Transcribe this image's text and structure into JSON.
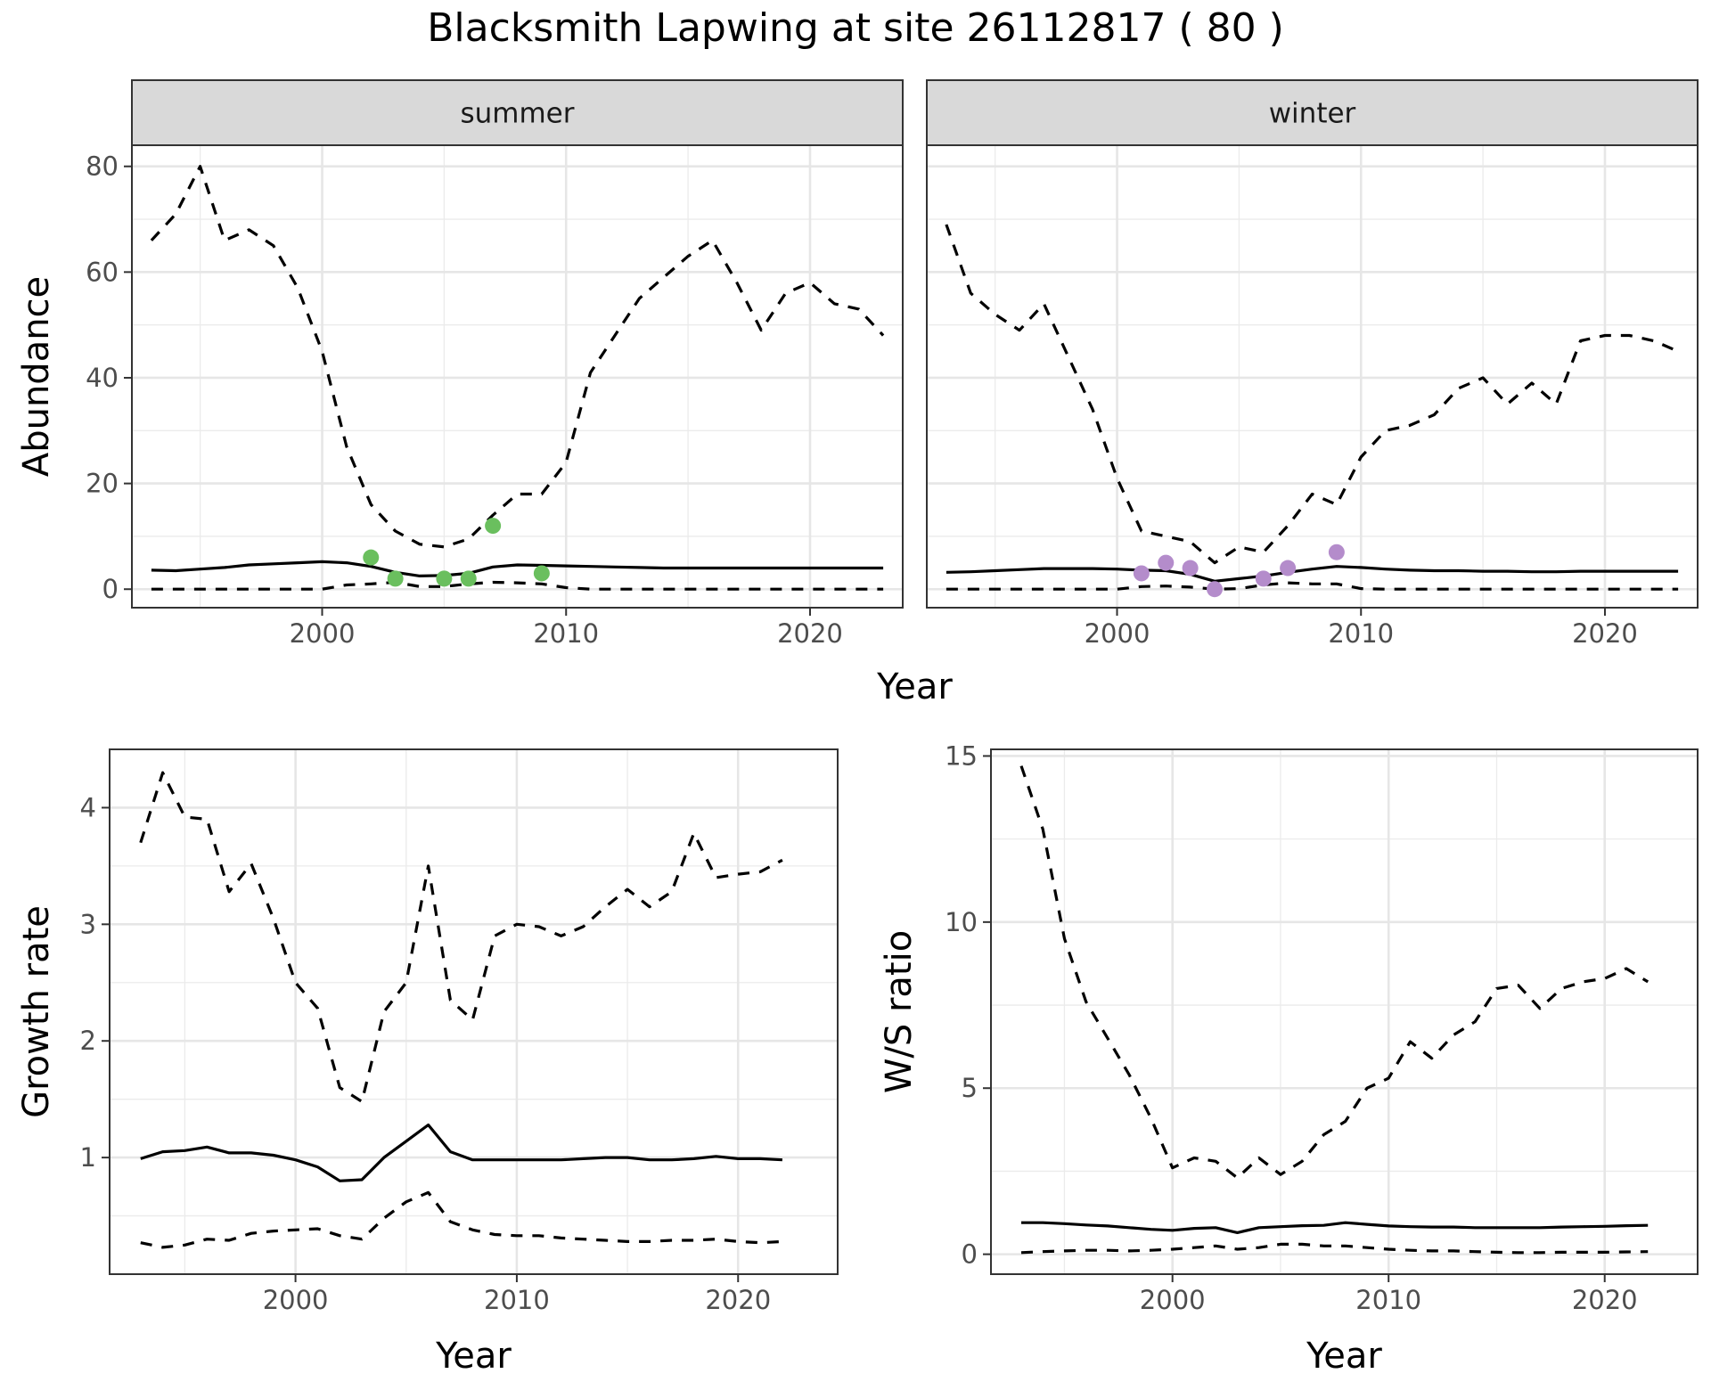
{
  "title": "Blacksmith Lapwing at site 26112817 ( 80 )",
  "colors": {
    "summer_points": "#6abf5e",
    "winter_points": "#b48ccb",
    "lines": "#000000",
    "strip_fill": "#d9d9d9"
  },
  "chart_data": [
    {
      "type": "line",
      "panel": "summer",
      "strip_label": "summer",
      "xlabel": "Year",
      "ylabel": "Abundance",
      "xlim": [
        1992.2,
        2023.8
      ],
      "ylim": [
        -3.5,
        84
      ],
      "xticks": [
        2000,
        2010,
        2020
      ],
      "yticks": [
        0,
        20,
        40,
        60,
        80
      ],
      "x": [
        1993,
        1994,
        1995,
        1996,
        1997,
        1998,
        1999,
        2000,
        2001,
        2002,
        2003,
        2004,
        2005,
        2006,
        2007,
        2008,
        2009,
        2010,
        2011,
        2012,
        2013,
        2014,
        2015,
        2016,
        2017,
        2018,
        2019,
        2020,
        2021,
        2022,
        2023
      ],
      "series": [
        {
          "style": "dashed",
          "values": [
            66,
            71,
            80,
            66,
            68,
            65,
            57,
            45,
            27,
            16,
            11,
            8.5,
            8,
            9.5,
            14,
            18,
            18,
            24,
            41,
            48,
            55,
            59,
            63,
            66,
            58,
            49,
            56,
            58,
            54,
            53,
            48
          ]
        },
        {
          "style": "solid",
          "values": [
            3.6,
            3.5,
            3.8,
            4.1,
            4.6,
            4.8,
            5,
            5.2,
            5,
            4.3,
            3.2,
            2.5,
            2.6,
            3,
            4.2,
            4.6,
            4.5,
            4.4,
            4.3,
            4.2,
            4.1,
            4,
            4,
            4,
            4,
            4,
            4,
            4,
            4,
            4,
            4
          ]
        },
        {
          "style": "dashed",
          "values": [
            0,
            0,
            0,
            0,
            0,
            0,
            0,
            0,
            0.8,
            1,
            1.3,
            0.5,
            0.5,
            1,
            1.3,
            1.2,
            1,
            0.3,
            0,
            0,
            0,
            0,
            0,
            0,
            0,
            0,
            0,
            0,
            0,
            0,
            0
          ]
        }
      ],
      "points": {
        "x": [
          2002,
          2003,
          2005,
          2006,
          2007,
          2009
        ],
        "y": [
          6,
          2,
          2,
          2,
          12,
          3
        ]
      }
    },
    {
      "type": "line",
      "panel": "winter",
      "strip_label": "winter",
      "xlabel": "Year",
      "ylabel": "",
      "xlim": [
        1992.2,
        2023.8
      ],
      "ylim": [
        -3.5,
        84
      ],
      "xticks": [
        2000,
        2010,
        2020
      ],
      "yticks": [],
      "x": [
        1993,
        1994,
        1995,
        1996,
        1997,
        1998,
        1999,
        2000,
        2001,
        2002,
        2003,
        2004,
        2005,
        2006,
        2007,
        2008,
        2009,
        2010,
        2011,
        2012,
        2013,
        2014,
        2015,
        2016,
        2017,
        2018,
        2019,
        2020,
        2021,
        2022,
        2023
      ],
      "series": [
        {
          "style": "dashed",
          "values": [
            69,
            56,
            52,
            49,
            54,
            44,
            34,
            21,
            11,
            10,
            9,
            5,
            8,
            7,
            12,
            18,
            16,
            25,
            30,
            31,
            33,
            38,
            40,
            35,
            39,
            35,
            47,
            48,
            48,
            47,
            45
          ]
        },
        {
          "style": "solid",
          "values": [
            3.2,
            3.3,
            3.5,
            3.7,
            3.9,
            3.9,
            3.9,
            3.8,
            3.6,
            3.5,
            2.8,
            1.5,
            2,
            2.5,
            3.2,
            3.8,
            4.3,
            4.1,
            3.8,
            3.6,
            3.5,
            3.5,
            3.4,
            3.4,
            3.3,
            3.3,
            3.4,
            3.4,
            3.4,
            3.4,
            3.4
          ]
        },
        {
          "style": "dashed",
          "values": [
            0,
            0,
            0,
            0,
            0,
            0,
            0,
            0,
            0.5,
            0.6,
            0.4,
            0,
            0.1,
            0.8,
            1.2,
            1,
            1,
            0.1,
            0,
            0,
            0,
            0,
            0,
            0,
            0,
            0,
            0,
            0,
            0,
            0,
            0
          ]
        }
      ],
      "points": {
        "x": [
          2001,
          2002,
          2003,
          2004,
          2006,
          2007,
          2009
        ],
        "y": [
          3,
          5,
          4,
          0,
          2,
          4,
          7
        ]
      }
    },
    {
      "type": "line",
      "panel": "growth",
      "xlabel": "Year",
      "ylabel": "Growth rate",
      "xlim": [
        1991.6,
        2024.5
      ],
      "ylim": [
        0.0,
        4.5
      ],
      "xticks": [
        2000,
        2010,
        2020
      ],
      "yticks": [
        1,
        2,
        3,
        4
      ],
      "x": [
        1993,
        1994,
        1995,
        1996,
        1997,
        1998,
        1999,
        2000,
        2001,
        2002,
        2003,
        2004,
        2005,
        2006,
        2007,
        2008,
        2009,
        2010,
        2011,
        2012,
        2013,
        2014,
        2015,
        2016,
        2017,
        2018,
        2019,
        2020,
        2021,
        2022
      ],
      "series": [
        {
          "style": "dashed",
          "values": [
            3.7,
            4.3,
            3.92,
            3.9,
            3.28,
            3.52,
            3.05,
            2.5,
            2.28,
            1.6,
            1.48,
            2.25,
            2.5,
            3.5,
            2.35,
            2.18,
            2.9,
            3.0,
            2.98,
            2.9,
            2.98,
            3.15,
            3.3,
            3.15,
            3.28,
            3.78,
            3.4,
            3.43,
            3.45,
            3.55
          ]
        },
        {
          "style": "solid",
          "values": [
            0.99,
            1.05,
            1.06,
            1.09,
            1.04,
            1.04,
            1.02,
            0.98,
            0.92,
            0.8,
            0.81,
            1.0,
            1.14,
            1.28,
            1.05,
            0.98,
            0.98,
            0.98,
            0.98,
            0.98,
            0.99,
            1.0,
            1.0,
            0.98,
            0.98,
            0.99,
            1.01,
            0.99,
            0.99,
            0.98
          ]
        },
        {
          "style": "dashed",
          "values": [
            0.27,
            0.23,
            0.25,
            0.3,
            0.29,
            0.35,
            0.37,
            0.38,
            0.39,
            0.33,
            0.3,
            0.48,
            0.62,
            0.7,
            0.45,
            0.38,
            0.34,
            0.33,
            0.33,
            0.31,
            0.3,
            0.29,
            0.28,
            0.28,
            0.29,
            0.29,
            0.3,
            0.28,
            0.27,
            0.28
          ]
        }
      ]
    },
    {
      "type": "line",
      "panel": "ratio",
      "xlabel": "Year",
      "ylabel": "W/S ratio",
      "xlim": [
        1991.6,
        2024.3
      ],
      "ylim": [
        -0.6,
        15.2
      ],
      "xticks": [
        2000,
        2010,
        2020
      ],
      "yticks": [
        0,
        5,
        10,
        15
      ],
      "x": [
        1993,
        1994,
        1995,
        1996,
        1997,
        1998,
        1999,
        2000,
        2001,
        2002,
        2003,
        2004,
        2005,
        2006,
        2007,
        2008,
        2009,
        2010,
        2011,
        2012,
        2013,
        2014,
        2015,
        2016,
        2017,
        2018,
        2019,
        2020,
        2021,
        2022
      ],
      "series": [
        {
          "style": "dashed",
          "values": [
            14.7,
            12.8,
            9.5,
            7.6,
            6.5,
            5.4,
            4.1,
            2.6,
            2.9,
            2.8,
            2.3,
            2.9,
            2.4,
            2.8,
            3.6,
            4.0,
            5.0,
            5.3,
            6.4,
            5.9,
            6.6,
            7.0,
            8.0,
            8.1,
            7.4,
            8.0,
            8.2,
            8.3,
            8.6,
            8.2
          ]
        },
        {
          "style": "solid",
          "values": [
            0.95,
            0.95,
            0.92,
            0.88,
            0.85,
            0.8,
            0.75,
            0.72,
            0.78,
            0.8,
            0.65,
            0.8,
            0.83,
            0.86,
            0.87,
            0.95,
            0.9,
            0.85,
            0.83,
            0.82,
            0.82,
            0.8,
            0.8,
            0.8,
            0.8,
            0.82,
            0.83,
            0.84,
            0.86,
            0.87
          ]
        },
        {
          "style": "dashed",
          "values": [
            0.05,
            0.08,
            0.1,
            0.12,
            0.12,
            0.1,
            0.12,
            0.15,
            0.2,
            0.25,
            0.15,
            0.2,
            0.3,
            0.3,
            0.25,
            0.25,
            0.2,
            0.15,
            0.12,
            0.1,
            0.1,
            0.08,
            0.06,
            0.05,
            0.05,
            0.06,
            0.06,
            0.06,
            0.07,
            0.08
          ]
        }
      ]
    }
  ]
}
